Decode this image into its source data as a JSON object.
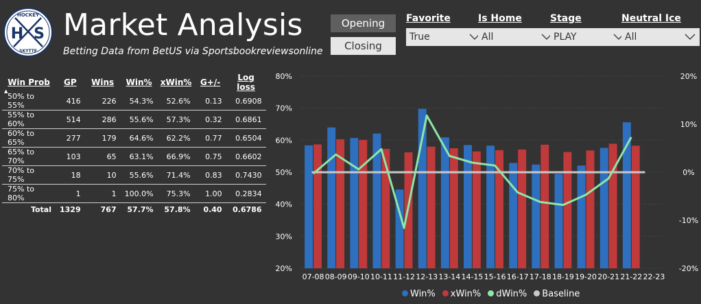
{
  "logo": {
    "top_text": "HOCKEY",
    "left_letter": "H",
    "right_letter": "S",
    "bottom_text": "SKYTTE"
  },
  "header": {
    "title": "Market Analysis",
    "subtitle": "Betting Data from BetUS via Sportsbookreviewsonline"
  },
  "toggle": {
    "opening": "Opening",
    "closing": "Closing"
  },
  "slicers": [
    {
      "label": "Favorite",
      "value": "True"
    },
    {
      "label": "Is Home",
      "value": "All"
    },
    {
      "label": "Stage",
      "value": "PLAY"
    },
    {
      "label": "Neutral Ice",
      "value": "All"
    }
  ],
  "table": {
    "columns": [
      "Win Prob",
      "GP",
      "Wins",
      "Win%",
      "xWin%",
      "G+/-",
      "Log loss"
    ],
    "rows": [
      [
        "50% to 55%",
        "416",
        "226",
        "54.3%",
        "52.6%",
        "0.13",
        "0.6908"
      ],
      [
        "55% to 60%",
        "514",
        "286",
        "55.6%",
        "57.3%",
        "0.32",
        "0.6861"
      ],
      [
        "60% to 65%",
        "277",
        "179",
        "64.6%",
        "62.2%",
        "0.77",
        "0.6504"
      ],
      [
        "65% to 70%",
        "103",
        "65",
        "63.1%",
        "66.9%",
        "0.75",
        "0.6602"
      ],
      [
        "70% to 75%",
        "18",
        "10",
        "55.6%",
        "71.4%",
        "0.83",
        "0.7430"
      ],
      [
        "75% to 80%",
        "1",
        "1",
        "100.0%",
        "75.3%",
        "1.00",
        "0.2834"
      ]
    ],
    "total": [
      "Total",
      "1329",
      "767",
      "57.7%",
      "57.8%",
      "0.40",
      "0.6786"
    ]
  },
  "colors": {
    "win": "#2f6fbf",
    "xwin": "#c0393b",
    "dwin": "#8ee6a8",
    "baseline": "#c8c8c8"
  },
  "chart_data": {
    "type": "bar",
    "categories": [
      "07-08",
      "08-09",
      "09-10",
      "10-11",
      "11-12",
      "12-13",
      "13-14",
      "14-15",
      "15-16",
      "16-17",
      "17-18",
      "18-19",
      "19-20",
      "20-21",
      "21-22",
      "22-23"
    ],
    "series": [
      {
        "name": "Win%",
        "values": [
          58.4,
          64.0,
          60.7,
          62.1,
          44.6,
          69.8,
          60.9,
          58.5,
          58.3,
          52.9,
          52.4,
          49.5,
          52.1,
          57.6,
          65.6,
          null
        ]
      },
      {
        "name": "xWin%",
        "values": [
          58.7,
          60.3,
          60.1,
          57.3,
          56.2,
          58.0,
          57.5,
          56.5,
          56.9,
          57.1,
          58.6,
          56.3,
          56.8,
          58.9,
          58.3,
          null
        ]
      },
      {
        "name": "dWin%",
        "values": [
          -0.3,
          3.7,
          0.6,
          4.8,
          -11.6,
          11.8,
          3.4,
          2.0,
          1.4,
          -4.2,
          -6.2,
          -6.8,
          -4.7,
          -1.3,
          7.3,
          null
        ]
      },
      {
        "name": "Baseline",
        "values": [
          0,
          0,
          0,
          0,
          0,
          0,
          0,
          0,
          0,
          0,
          0,
          0,
          0,
          0,
          0,
          0
        ]
      }
    ],
    "y_left": {
      "ticks": [
        "80%",
        "70%",
        "60%",
        "50%",
        "40%",
        "30%",
        "20%"
      ],
      "range": [
        20,
        80
      ]
    },
    "y_right": {
      "ticks": [
        "20%",
        "10%",
        "0%",
        "-10%",
        "-20%"
      ],
      "range": [
        -20,
        20
      ]
    },
    "legend": [
      "Win%",
      "xWin%",
      "dWin%",
      "Baseline"
    ]
  }
}
